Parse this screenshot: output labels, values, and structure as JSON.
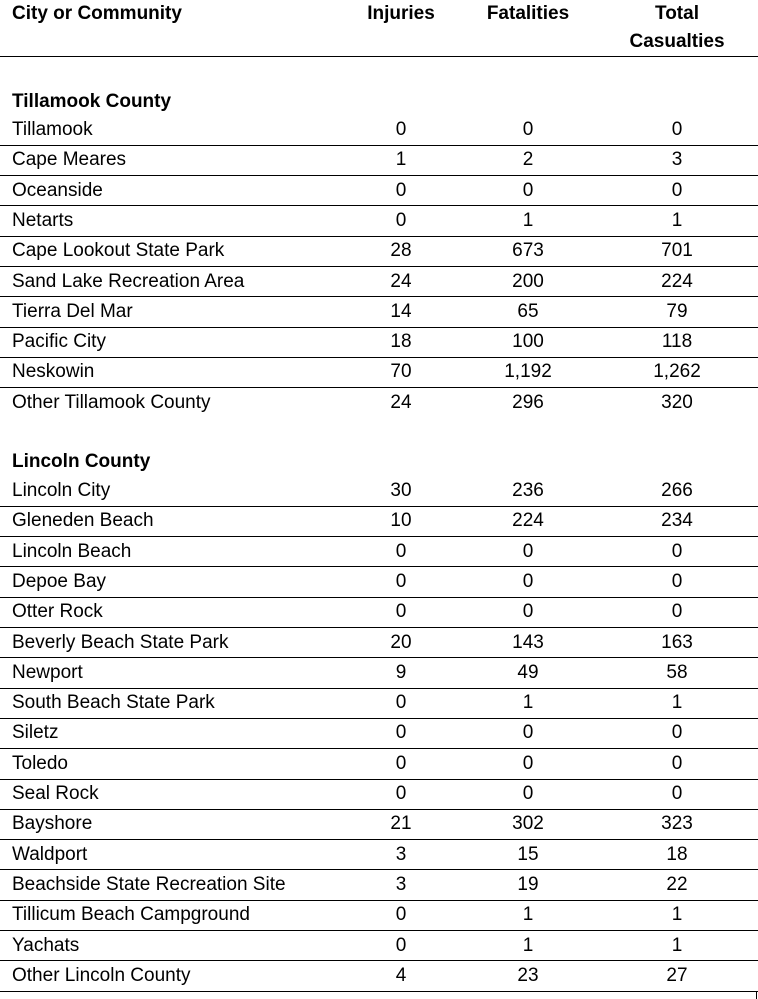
{
  "headers": {
    "city": "City or Community",
    "injuries": "Injuries",
    "fatalities": "Fatalities",
    "total_line1": "Total",
    "total_line2": "Casualties"
  },
  "groups": [
    {
      "county": "Tillamook County",
      "rows": [
        {
          "name": "Tillamook",
          "injuries": "0",
          "fatalities": "0",
          "total": "0"
        },
        {
          "name": "Cape Meares",
          "injuries": "1",
          "fatalities": "2",
          "total": "3"
        },
        {
          "name": "Oceanside",
          "injuries": "0",
          "fatalities": "0",
          "total": "0"
        },
        {
          "name": "Netarts",
          "injuries": "0",
          "fatalities": "1",
          "total": "1"
        },
        {
          "name": "Cape Lookout State Park",
          "injuries": "28",
          "fatalities": "673",
          "total": "701"
        },
        {
          "name": "Sand Lake Recreation Area",
          "injuries": "24",
          "fatalities": "200",
          "total": "224"
        },
        {
          "name": "Tierra Del Mar",
          "injuries": "14",
          "fatalities": "65",
          "total": "79"
        },
        {
          "name": "Pacific City",
          "injuries": "18",
          "fatalities": "100",
          "total": "118"
        },
        {
          "name": "Neskowin",
          "injuries": "70",
          "fatalities": "1,192",
          "total": "1,262"
        },
        {
          "name": "Other Tillamook County",
          "injuries": "24",
          "fatalities": "296",
          "total": "320"
        }
      ]
    },
    {
      "county": "Lincoln County",
      "rows": [
        {
          "name": "Lincoln City",
          "injuries": "30",
          "fatalities": "236",
          "total": "266"
        },
        {
          "name": "Gleneden Beach",
          "injuries": "10",
          "fatalities": "224",
          "total": "234"
        },
        {
          "name": "Lincoln Beach",
          "injuries": "0",
          "fatalities": "0",
          "total": "0"
        },
        {
          "name": "Depoe Bay",
          "injuries": "0",
          "fatalities": "0",
          "total": "0"
        },
        {
          "name": "Otter Rock",
          "injuries": "0",
          "fatalities": "0",
          "total": "0"
        },
        {
          "name": "Beverly Beach State Park",
          "injuries": "20",
          "fatalities": "143",
          "total": "163"
        },
        {
          "name": "Newport",
          "injuries": "9",
          "fatalities": "49",
          "total": "58"
        },
        {
          "name": "South Beach State Park",
          "injuries": "0",
          "fatalities": "1",
          "total": "1"
        },
        {
          "name": "Siletz",
          "injuries": "0",
          "fatalities": "0",
          "total": "0"
        },
        {
          "name": "Toledo",
          "injuries": "0",
          "fatalities": "0",
          "total": "0"
        },
        {
          "name": "Seal Rock",
          "injuries": "0",
          "fatalities": "0",
          "total": "0"
        },
        {
          "name": "Bayshore",
          "injuries": "21",
          "fatalities": "302",
          "total": "323"
        },
        {
          "name": "Waldport",
          "injuries": "3",
          "fatalities": "15",
          "total": "18"
        },
        {
          "name": "Beachside State Recreation Site",
          "injuries": "3",
          "fatalities": "19",
          "total": "22"
        },
        {
          "name": "Tillicum Beach Campground",
          "injuries": "0",
          "fatalities": "1",
          "total": "1"
        },
        {
          "name": "Yachats",
          "injuries": "0",
          "fatalities": "1",
          "total": "1"
        },
        {
          "name": "Other Lincoln County",
          "injuries": "4",
          "fatalities": "23",
          "total": "27"
        }
      ]
    }
  ]
}
